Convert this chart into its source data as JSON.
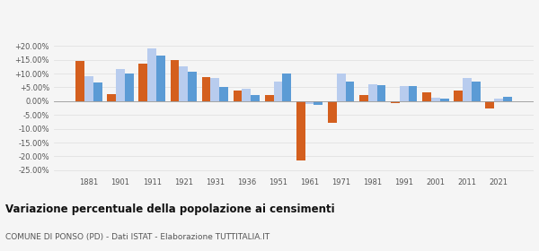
{
  "years": [
    1881,
    1901,
    1911,
    1921,
    1931,
    1936,
    1951,
    1961,
    1971,
    1981,
    1991,
    2001,
    2011,
    2021
  ],
  "ponso": [
    14.5,
    2.5,
    13.5,
    14.8,
    8.8,
    4.0,
    2.2,
    -21.5,
    -8.0,
    2.2,
    -0.7,
    3.2,
    3.8,
    -2.5
  ],
  "provincia": [
    9.0,
    11.5,
    19.0,
    12.5,
    8.5,
    4.5,
    7.0,
    -1.0,
    10.0,
    6.0,
    5.5,
    1.2,
    8.5,
    1.0
  ],
  "veneto": [
    6.8,
    10.0,
    16.5,
    10.5,
    5.0,
    2.2,
    10.0,
    -1.5,
    7.2,
    5.8,
    5.5,
    1.0,
    7.2,
    1.5
  ],
  "color_ponso": "#d45f1e",
  "color_provincia": "#b8ccee",
  "color_veneto": "#5b9bd5",
  "title": "Variazione percentuale della popolazione ai censimenti",
  "subtitle": "COMUNE DI PONSO (PD) - Dati ISTAT - Elaborazione TUTTITALIA.IT",
  "ylim": [
    -27,
    23
  ],
  "yticks": [
    -25,
    -20,
    -15,
    -10,
    -5,
    0,
    5,
    10,
    15,
    20
  ],
  "ytick_labels": [
    "-25.00%",
    "-20.00%",
    "-15.00%",
    "-10.00%",
    "-5.00%",
    "0.00%",
    "+5.00%",
    "+10.00%",
    "+15.00%",
    "+20.00%"
  ],
  "bar_width": 0.28,
  "background_color": "#f5f5f5",
  "grid_color": "#dddddd"
}
